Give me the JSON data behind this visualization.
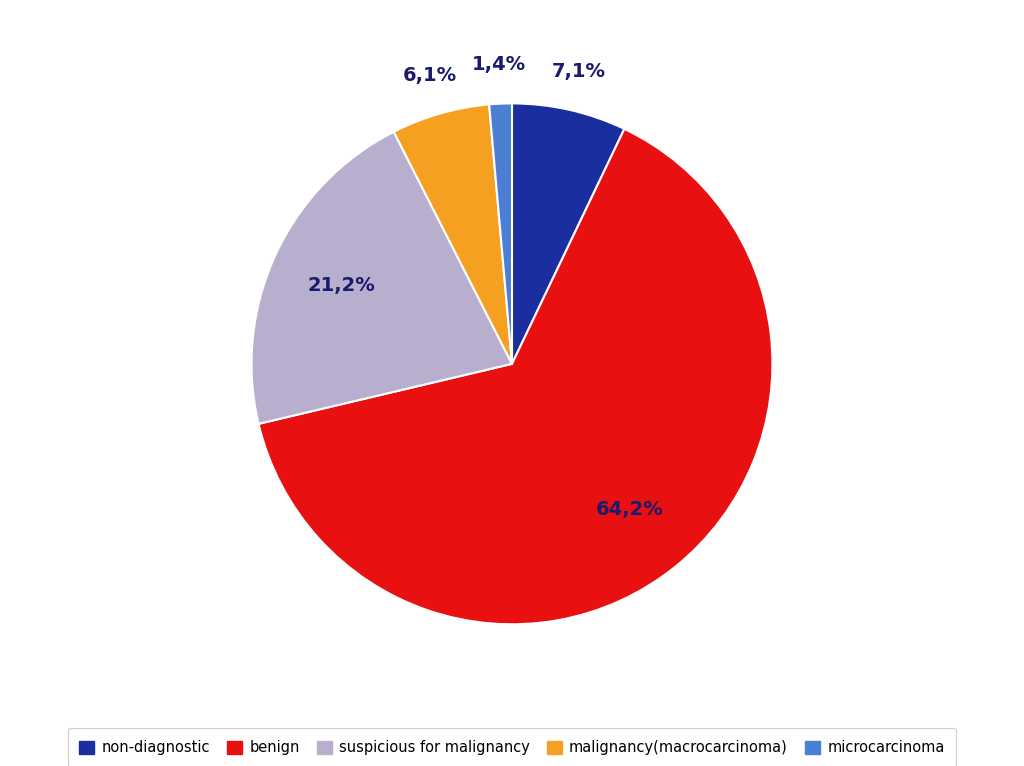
{
  "labels": [
    "non-diagnostic",
    "benign",
    "suspicious for malignancy",
    "malignancy(macrocarcinoma)",
    "microcarcinoma"
  ],
  "values": [
    7.1,
    64.2,
    21.2,
    6.1,
    1.4
  ],
  "colors": [
    "#1a2ea0",
    "#e81010",
    "#b8aece",
    "#f5a020",
    "#4a7fd4"
  ],
  "pct_labels": [
    "7,1%",
    "64,2%",
    "21,2%",
    "6,1%",
    "1,4%"
  ],
  "legend_colors": [
    "#1a2ea0",
    "#e81010",
    "#b8aece",
    "#f5a020",
    "#4a7fd4"
  ],
  "background_color": "#ffffff",
  "pct_distance_large": 0.72,
  "pct_distance_small": 1.15,
  "font_size": 14,
  "font_color": "#1a1a6e",
  "startangle": 90
}
